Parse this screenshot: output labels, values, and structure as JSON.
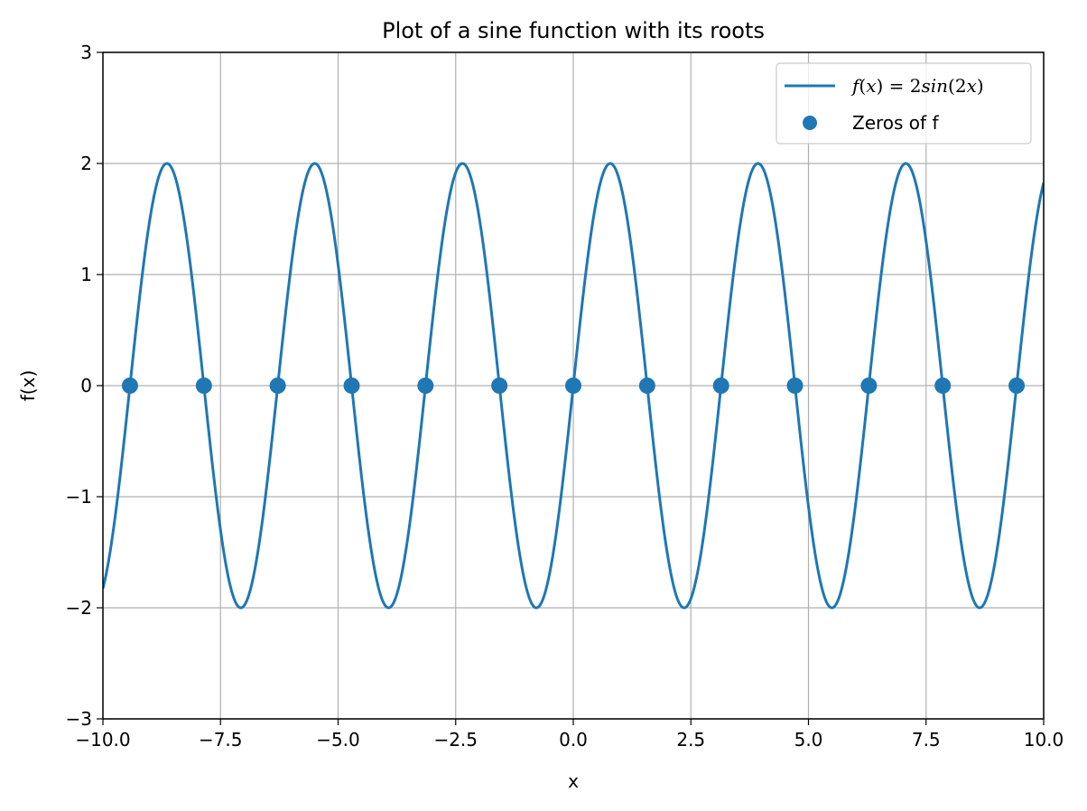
{
  "chart_data": {
    "type": "line",
    "title": "Plot of a sine function with its roots",
    "xlabel": "x",
    "ylabel": "f(x)",
    "xlim": [
      -10,
      10
    ],
    "ylim": [
      -3,
      3
    ],
    "grid": true,
    "legend_position": "top-right",
    "x_ticks": [
      -10,
      -7.5,
      -5,
      -2.5,
      0,
      2.5,
      5,
      7.5,
      10
    ],
    "x_tick_labels": [
      "−10.0",
      "−7.5",
      "−5.0",
      "−2.5",
      "0.0",
      "2.5",
      "5.0",
      "7.5",
      "10.0"
    ],
    "y_ticks": [
      -3,
      -2,
      -1,
      0,
      1,
      2,
      3
    ],
    "y_tick_labels": [
      "−3",
      "−2",
      "−1",
      "0",
      "1",
      "2",
      "3"
    ],
    "series": [
      {
        "name": "f(x) = 2sin(2x)",
        "kind": "line",
        "function": "2*sin(2*x)",
        "amplitude": 2,
        "frequency": 2,
        "color": "#1f77b4"
      },
      {
        "name": "Zeros of f",
        "kind": "scatter",
        "color": "#1f77b4",
        "x": [
          -9.425,
          -7.854,
          -6.283,
          -4.712,
          -3.142,
          -1.571,
          0.0,
          1.571,
          3.142,
          4.712,
          6.283,
          7.854,
          9.425
        ],
        "y": [
          0,
          0,
          0,
          0,
          0,
          0,
          0,
          0,
          0,
          0,
          0,
          0,
          0
        ]
      }
    ],
    "legend": [
      {
        "label_math": "f(x) = 2sin(2x)",
        "marker": "line"
      },
      {
        "label": "Zeros of f",
        "marker": "circle"
      }
    ]
  }
}
